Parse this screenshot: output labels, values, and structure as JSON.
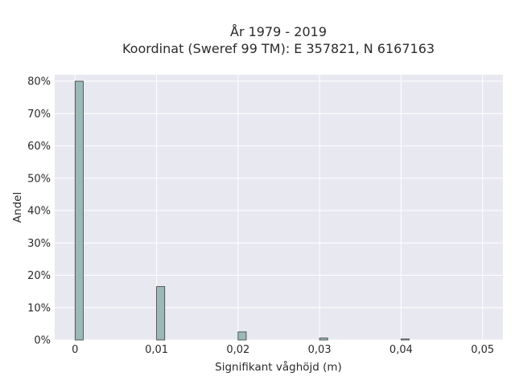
{
  "chart_data": {
    "type": "bar",
    "title_line1": "År 1979 - 2019",
    "title_line2": "Koordinat (Sweref 99 TM): E 357821, N 6167163",
    "xlabel": "Signifikant våghöjd (m)",
    "ylabel": "Andel",
    "xlim": [
      -0.0025,
      0.0525
    ],
    "ylim": [
      0,
      0.82
    ],
    "x_ticks": [
      0,
      0.01,
      0.02,
      0.03,
      0.04,
      0.05
    ],
    "x_tick_labels": [
      "0",
      "0,01",
      "0,02",
      "0,03",
      "0,04",
      "0,05"
    ],
    "y_ticks": [
      0,
      0.1,
      0.2,
      0.3,
      0.4,
      0.5,
      0.6,
      0.7,
      0.8
    ],
    "y_tick_labels": [
      "0%",
      "10%",
      "20%",
      "30%",
      "40%",
      "50%",
      "60%",
      "70%",
      "80%"
    ],
    "bin_width": 0.001,
    "bars": [
      {
        "x": 0.0,
        "value": 0.8
      },
      {
        "x": 0.01,
        "value": 0.165
      },
      {
        "x": 0.02,
        "value": 0.025
      },
      {
        "x": 0.03,
        "value": 0.006
      },
      {
        "x": 0.04,
        "value": 0.003
      }
    ],
    "grid": true,
    "colors": {
      "plot_background": "#e8e8f0",
      "grid": "#ffffff",
      "bar_fill": "#9cb8b8",
      "bar_stroke": "#3a3a3a",
      "text": "#2b2b2b"
    }
  }
}
